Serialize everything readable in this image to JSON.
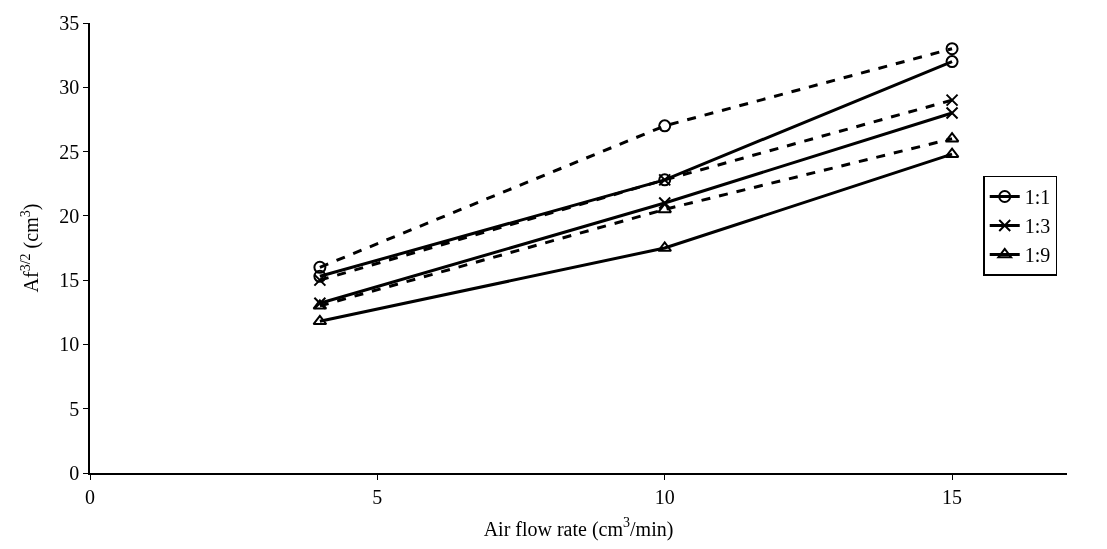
{
  "chart_data": {
    "type": "line",
    "xlabel": "Air flow rate (cm$^{3}$/min)",
    "ylabel": "Af$^{3/2}$ (cm$^{3}$)",
    "x": [
      4,
      10,
      15
    ],
    "xlim": [
      0,
      17
    ],
    "xticks": [
      0,
      5,
      10,
      15
    ],
    "ylim": [
      0,
      35
    ],
    "yticks": [
      0,
      5,
      10,
      15,
      20,
      25,
      30,
      35
    ],
    "legend": "right",
    "series": [
      {
        "name": "1:1",
        "color": "#000000",
        "marker": "circle",
        "line_style": "solid",
        "values": [
          15.3,
          22.8,
          32
        ]
      },
      {
        "name": "1:3",
        "color": "#000000",
        "marker": "cross",
        "line_style": "solid",
        "values": [
          13.2,
          21,
          28
        ]
      },
      {
        "name": "1:9",
        "color": "#000000",
        "marker": "triangle",
        "line_style": "solid",
        "values": [
          11.8,
          17.5,
          24.8
        ]
      },
      {
        "color": "#000000",
        "marker": "circle",
        "line_style": "dashed",
        "values": [
          16,
          27,
          33
        ]
      },
      {
        "color": "#000000",
        "marker": "cross",
        "line_style": "dashed",
        "values": [
          15,
          22.8,
          29
        ]
      },
      {
        "color": "#000000",
        "marker": "triangle",
        "line_style": "dashed",
        "values": [
          13,
          20.5,
          26
        ]
      }
    ]
  }
}
